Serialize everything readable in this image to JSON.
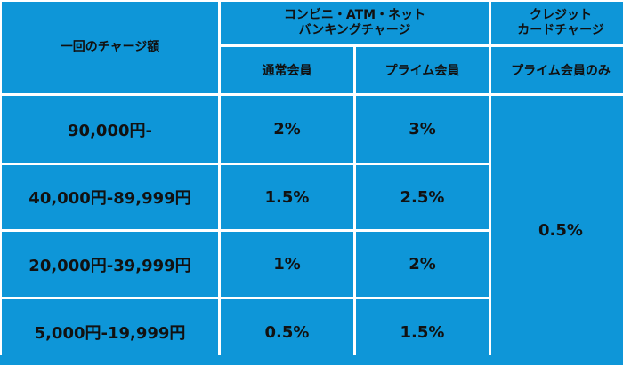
{
  "header": {
    "amount_label": "一回のチャージ額",
    "convenience_line1": "コンビニ・ATM・ネット",
    "convenience_line2": "バンキングチャージ",
    "credit_line1": "クレジット",
    "credit_line2": "カードチャージ",
    "normal_member": "通常会員",
    "prime_member": "プライム会員",
    "prime_only": "プライム会員のみ"
  },
  "rows": [
    {
      "amount": "90,000円-",
      "normal": "2%",
      "prime": "3%"
    },
    {
      "amount": "40,000円-89,999円",
      "normal": "1.5%",
      "prime": "2.5%"
    },
    {
      "amount": "20,000円-39,999円",
      "normal": "1%",
      "prime": "2%"
    },
    {
      "amount": "5,000円-19,999円",
      "normal": "0.5%",
      "prime": "1.5%"
    }
  ],
  "credit_rate": "0.5%",
  "colors": {
    "cell_bg": "#0e96d8",
    "grid_lines": "#ffffff",
    "text": "#111111"
  }
}
